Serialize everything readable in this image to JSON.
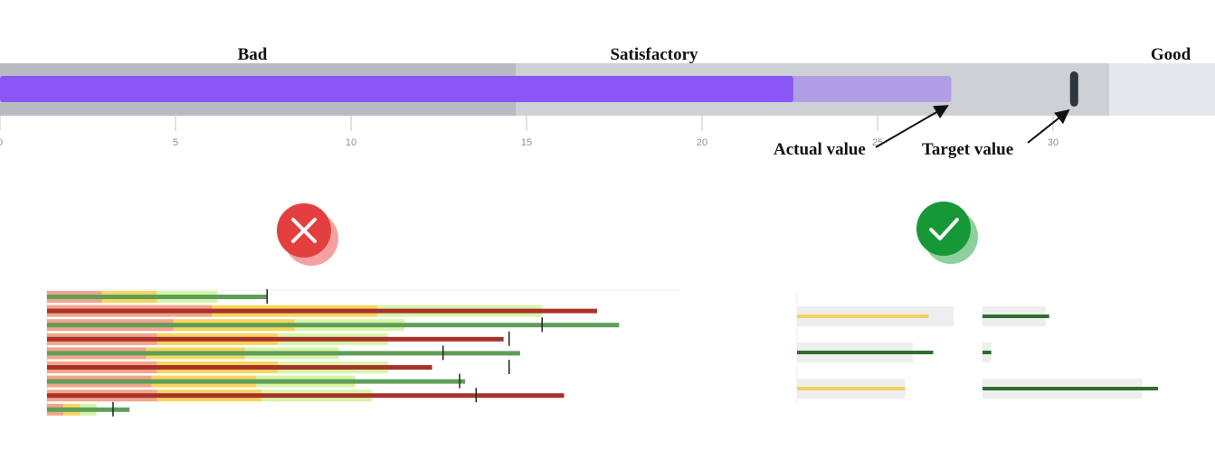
{
  "chart_data": [
    {
      "type": "bullet",
      "title": "",
      "axis": {
        "range": [
          0,
          34
        ],
        "ticks": [
          0,
          5,
          10,
          15,
          20,
          25,
          30
        ]
      },
      "bands": [
        {
          "name": "Bad",
          "from": 0,
          "to": 14.7,
          "color": "#b7bcc2"
        },
        {
          "name": "Satisfactory",
          "from": 14.7,
          "to": 31.6,
          "color": "#cdd1d6"
        },
        {
          "name": "Good",
          "from": 31.6,
          "to": 34,
          "color": "#e6e7ea"
        }
      ],
      "actual_value": 22.6,
      "forecast_value": 27.1,
      "target_value": 30.6,
      "colors": {
        "actual": "#8a57f7",
        "forecast": "#b19ee5",
        "target": "#2e3640"
      },
      "annotations": [
        {
          "label": "Actual value",
          "points_to": "forecast_end"
        },
        {
          "label": "Target value",
          "points_to": "target"
        }
      ]
    },
    {
      "type": "bullet",
      "verdict": "bad",
      "x_range": [
        0,
        100
      ],
      "rows": [
        {
          "bands": [
            10,
            20,
            31
          ],
          "value": 40,
          "target": 40
        },
        {
          "bands": [
            30,
            60,
            90
          ],
          "value": 100,
          "target": null
        },
        {
          "bands": [
            23,
            45,
            65
          ],
          "value": 104,
          "target": 90
        },
        {
          "bands": [
            20,
            42,
            62
          ],
          "value": 83,
          "target": 84
        },
        {
          "bands": [
            18,
            36,
            53
          ],
          "value": 86,
          "target": 72
        },
        {
          "bands": [
            20,
            42,
            62
          ],
          "value": 70,
          "target": 84
        },
        {
          "bands": [
            19,
            38,
            56
          ],
          "value": 76,
          "target": 75
        },
        {
          "bands": [
            20,
            39,
            59
          ],
          "value": 94,
          "target": 78
        },
        {
          "bands": [
            3,
            6,
            9
          ],
          "value": 15,
          "target": 12
        }
      ],
      "colors": {
        "bands": [
          "#f2a58a",
          "#f6d55e",
          "#d7f5a8",
          "#ffffff"
        ],
        "bar_red": "#a8322a",
        "bar_green": "#5f9e58",
        "target": "#222222"
      }
    },
    {
      "type": "bullet",
      "verdict": "good",
      "columns": [
        {
          "x_range": [
            0,
            100
          ],
          "rows": [
            {
              "background": 100,
              "value": 84,
              "color": "#f2cf63"
            },
            {
              "background": 74,
              "value": 87,
              "color": "#2f6e2f"
            },
            {
              "background": 69,
              "value": 69,
              "color": "#f2cf63"
            }
          ]
        },
        {
          "x_range": [
            0,
            100
          ],
          "rows": [
            {
              "background": 36,
              "value": 38,
              "color": "#2f6e2f"
            },
            {
              "background": 5,
              "value": 5,
              "color": "#2f6e2f"
            },
            {
              "background": 91,
              "value": 100,
              "color": "#2f6e2f"
            }
          ]
        }
      ],
      "colors": {
        "background": "#eeeeee"
      }
    }
  ],
  "verdict_icons": {
    "bad": {
      "icon": "cross-icon",
      "color": "#e33f3f",
      "shadow": "#f4a1a1"
    },
    "good": {
      "icon": "check-icon",
      "color": "#179836",
      "shadow": "#8fcf9c"
    }
  }
}
